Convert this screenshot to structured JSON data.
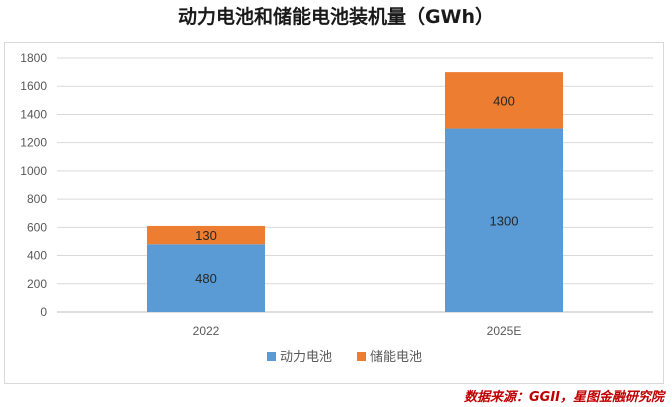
{
  "title": "动力电池和储能电池装机量（GWh）",
  "source": "数据来源：GGII，星图金融研究院",
  "colors": {
    "power": "#5b9bd5",
    "storage": "#ed7d31"
  },
  "chart_data": {
    "type": "bar",
    "stacked": true,
    "categories": [
      "2022",
      "2025E"
    ],
    "series": [
      {
        "name": "动力电池",
        "values": [
          480,
          1300
        ]
      },
      {
        "name": "储能电池",
        "values": [
          130,
          400
        ]
      }
    ],
    "ylim": [
      0,
      1800
    ],
    "yticks": [
      0,
      200,
      400,
      600,
      800,
      1000,
      1200,
      1400,
      1600,
      1800
    ],
    "grid": true,
    "legend": "bottom"
  }
}
